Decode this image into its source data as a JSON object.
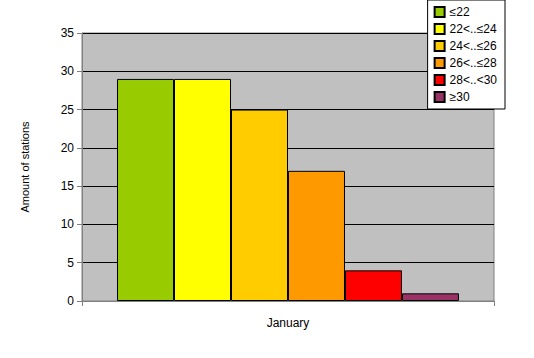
{
  "chart_data": {
    "type": "bar",
    "categories": [
      "January"
    ],
    "y_label": "Amount of stations",
    "series": [
      {
        "name": "≤22",
        "color": "#99cc00",
        "values": [
          29
        ]
      },
      {
        "name": "22<..≤24",
        "color": "#ffff00",
        "values": [
          29
        ]
      },
      {
        "name": "24<..≤26",
        "color": "#ffcc00",
        "values": [
          25
        ]
      },
      {
        "name": "26<..≤28",
        "color": "#ff9900",
        "values": [
          17
        ]
      },
      {
        "name": "28<..<30",
        "color": "#ff0000",
        "values": [
          4
        ]
      },
      {
        "name": "≥30",
        "color": "#993366",
        "values": [
          1
        ]
      }
    ],
    "ylim": [
      0,
      35
    ],
    "yticks": [
      0,
      5,
      10,
      15,
      20,
      25,
      30,
      35
    ],
    "grid": true,
    "legend": "top right"
  }
}
